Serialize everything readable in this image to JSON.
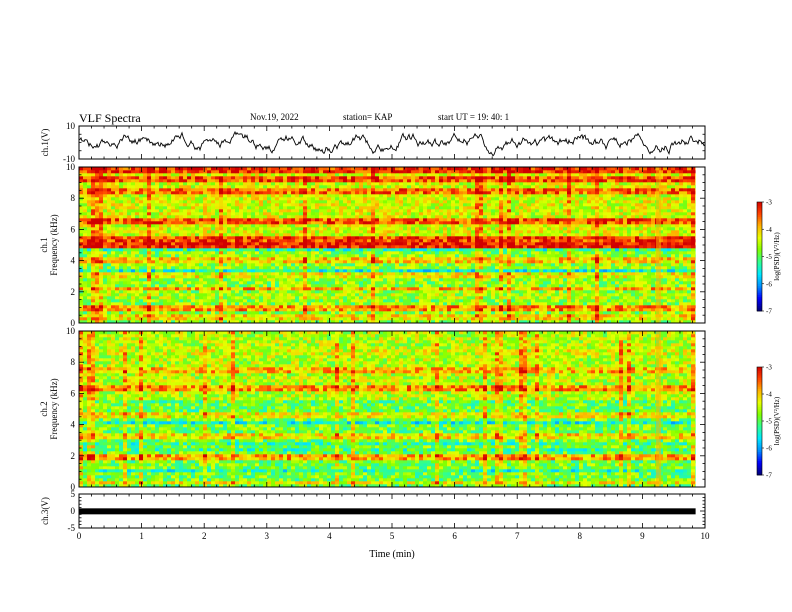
{
  "header": {
    "title": "VLF Spectra",
    "date": "Nov.19, 2022",
    "station": "station= KAP",
    "start_time": "start  UT =   19: 40: 1"
  },
  "colors": {
    "colormap": [
      "#00007a",
      "#0000ff",
      "#0090ff",
      "#00e8ff",
      "#30ff90",
      "#80ff00",
      "#e8ff00",
      "#ffb000",
      "#ff4000",
      "#d00000"
    ],
    "trace": "#000000",
    "axes": "#000000",
    "background": "#ffffff"
  },
  "chart_data": [
    {
      "type": "line",
      "name": "waveform-ch1",
      "ylabel": "ch.1(V)",
      "ylim": [
        -10,
        10
      ],
      "yticks": [
        "10",
        "-10"
      ],
      "xlim": [
        0,
        10
      ],
      "description_values": "noise waveform oscillating roughly between -6 and +6 V"
    },
    {
      "type": "heatmap",
      "name": "spectrogram-ch1",
      "ylabel": "ch.1\nFrequency (kHz)",
      "ylim": [
        0,
        10
      ],
      "yticks": [
        "0",
        "2",
        "4",
        "6",
        "8",
        "10"
      ],
      "xlim": [
        0,
        9.85
      ],
      "bands_khz": [
        {
          "f": 0.4,
          "level": -4.2
        },
        {
          "f": 0.9,
          "level": -3.8
        },
        {
          "f": 1.7,
          "level": -4.6
        },
        {
          "f": 2.2,
          "level": -3.9
        },
        {
          "f": 3.0,
          "level": -4.3
        },
        {
          "f": 3.6,
          "level": -5.9
        },
        {
          "f": 4.1,
          "level": -4.1
        },
        {
          "f": 4.5,
          "level": -5.7
        },
        {
          "f": 5.05,
          "level": -3.2
        },
        {
          "f": 5.4,
          "level": -3.4
        },
        {
          "f": 6.5,
          "level": -3.5
        },
        {
          "f": 7.1,
          "level": -4.4
        },
        {
          "f": 8.4,
          "level": -3.6
        },
        {
          "f": 9.2,
          "level": -3.5
        },
        {
          "f": 9.8,
          "level": -3.3
        }
      ]
    },
    {
      "type": "heatmap",
      "name": "spectrogram-ch2",
      "ylabel": "ch.2\nFrequency (kHz)",
      "ylim": [
        0,
        10
      ],
      "yticks": [
        "0",
        "2",
        "4",
        "6",
        "8",
        "10"
      ],
      "xlim": [
        0,
        9.85
      ],
      "bands_khz": [
        {
          "f": 0.3,
          "level": -4.3
        },
        {
          "f": 1.3,
          "level": -5.8
        },
        {
          "f": 1.9,
          "level": -3.9
        },
        {
          "f": 2.6,
          "level": -5.6
        },
        {
          "f": 3.3,
          "level": -4.2
        },
        {
          "f": 3.9,
          "level": -5.9
        },
        {
          "f": 4.6,
          "level": -4.3
        },
        {
          "f": 5.2,
          "level": -5.4
        },
        {
          "f": 6.3,
          "level": -3.8
        },
        {
          "f": 7.5,
          "level": -4.0
        },
        {
          "f": 8.6,
          "level": -4.4
        },
        {
          "f": 9.4,
          "level": -4.6
        }
      ]
    },
    {
      "type": "line",
      "name": "waveform-ch3",
      "ylabel": "ch.3(V)",
      "ylim": [
        -5,
        5
      ],
      "yticks": [
        "5",
        "0",
        "-5"
      ],
      "xlim": [
        0,
        9.85
      ],
      "level": -0.1
    }
  ],
  "axes": {
    "xlabel": "Time (min)",
    "xticks": [
      "0",
      "1",
      "2",
      "3",
      "4",
      "5",
      "6",
      "7",
      "8",
      "9",
      "10"
    ],
    "xlim": [
      0,
      10
    ]
  },
  "colorbar": {
    "label": "log(PSD)(V²/Hz)",
    "ticks": [
      "-3",
      "-4",
      "-5",
      "-6",
      "-7"
    ],
    "range": [
      -7,
      -3
    ]
  }
}
